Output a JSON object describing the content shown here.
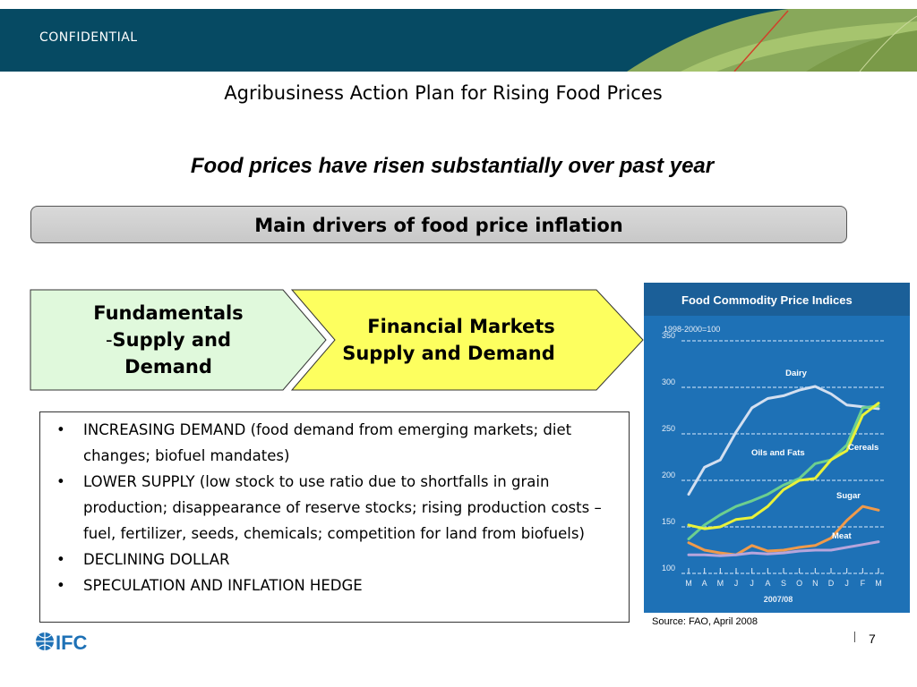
{
  "header": {
    "confidential": "CONFIDENTIAL",
    "accent_dark": "#064a63",
    "accent_green": "#8fad5a"
  },
  "slide": {
    "title": "Agribusiness Action Plan for Rising Food Prices",
    "subtitle": "Food prices have risen substantially over past year",
    "drivers_label": "Main drivers of food price inflation",
    "fundamentals_line1": "Fundamentals",
    "fundamentals_dash": "-",
    "fundamentals_line2": "Supply and",
    "fundamentals_line3": "Demand",
    "financial_line1": "Financial Markets",
    "financial_line2": "Supply and Demand",
    "bullets": [
      "INCREASING DEMAND (food demand from emerging markets; diet changes; biofuel mandates)",
      "LOWER SUPPLY (low stock to use ratio due to shortfalls in grain production; disappearance of reserve stocks; rising production costs – fuel, fertilizer, seeds, chemicals; competition for land from biofuels)",
      "DECLINING DOLLAR",
      "SPECULATION AND INFLATION HEDGE"
    ],
    "source": "Source: FAO, April 2008",
    "page_number": "7",
    "logo_text": "IFC"
  },
  "chart_data": {
    "type": "line",
    "title": "Food Commodity Price Indices",
    "ylabel": "1998-2000=100",
    "xlabel": "2007/08",
    "ylim": [
      100,
      350
    ],
    "yticks": [
      100,
      150,
      200,
      250,
      300,
      350
    ],
    "categories": [
      "M",
      "A",
      "M",
      "J",
      "J",
      "A",
      "S",
      "O",
      "N",
      "D",
      "J",
      "F",
      "M"
    ],
    "grid": true,
    "series": [
      {
        "name": "Dairy",
        "color": "#d3dff0",
        "values": [
          185,
          214,
          222,
          252,
          278,
          288,
          291,
          297,
          301,
          293,
          281,
          279,
          277
        ]
      },
      {
        "name": "Oils and Fats",
        "color": "#6ccf8f",
        "values": [
          137,
          152,
          163,
          172,
          178,
          185,
          195,
          202,
          218,
          222,
          238,
          278,
          280
        ]
      },
      {
        "name": "Cereals",
        "color": "#e9f23a",
        "values": [
          152,
          148,
          150,
          158,
          160,
          172,
          190,
          200,
          202,
          222,
          232,
          270,
          283
        ]
      },
      {
        "name": "Sugar",
        "color": "#f09a4a",
        "values": [
          133,
          125,
          122,
          120,
          130,
          124,
          125,
          128,
          130,
          138,
          157,
          172,
          168
        ]
      },
      {
        "name": "Meat",
        "color": "#b7a5dc",
        "values": [
          120,
          120,
          119,
          120,
          122,
          121,
          122,
          124,
          125,
          125,
          128,
          131,
          134
        ]
      }
    ]
  }
}
